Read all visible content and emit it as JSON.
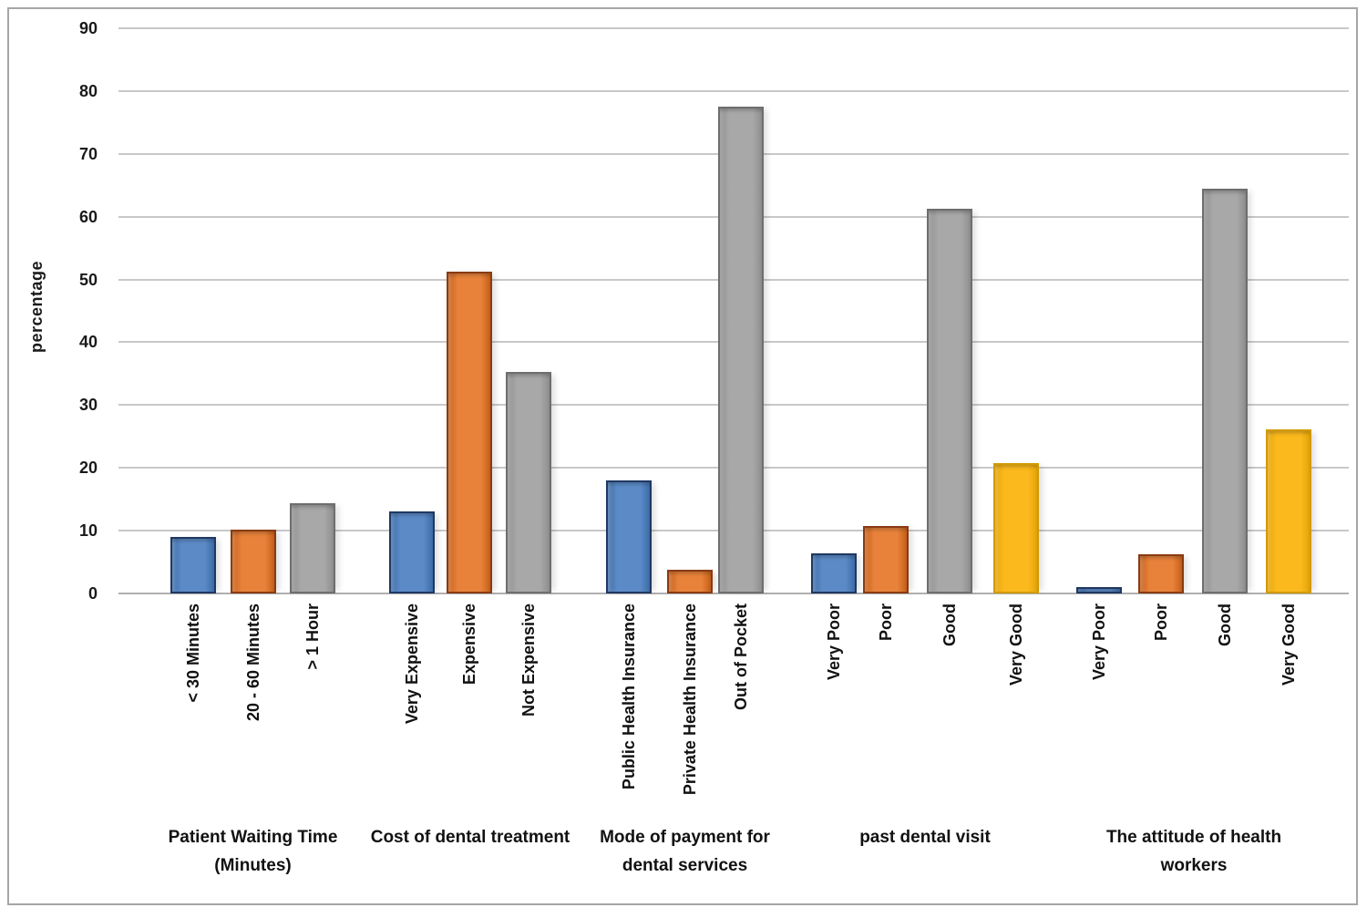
{
  "chart_data": {
    "type": "bar",
    "title": "",
    "xlabel": "",
    "ylabel": "percentage",
    "ylim": [
      0,
      90
    ],
    "yticks": [
      0,
      10,
      20,
      30,
      40,
      50,
      60,
      70,
      80,
      90
    ],
    "grid": true,
    "legend": false,
    "palette": {
      "blue": {
        "fill": "#5b8ac6",
        "border": "#1f3864",
        "shade": "#3d6da8"
      },
      "orange": {
        "fill": "#e8823a",
        "border": "#8a3b12",
        "shade": "#c55f1a"
      },
      "gray": {
        "fill": "#a8a8a8",
        "border": "#6e6e6e",
        "shade": "#8f8f8f"
      },
      "yellow": {
        "fill": "#fbb91d",
        "border": "#d29a00",
        "shade": "#e5a608"
      }
    },
    "groups": [
      {
        "label": "Patient Waiting Time (Minutes)",
        "bars": [
          {
            "category": "< 30 Minutes",
            "value": 9.0,
            "color": "blue"
          },
          {
            "category": "20 - 60 Minutes",
            "value": 10.2,
            "color": "orange"
          },
          {
            "category": "> 1 Hour",
            "value": 14.3,
            "color": "gray"
          }
        ]
      },
      {
        "label": "Cost of dental treatment",
        "bars": [
          {
            "category": "Very Expensive",
            "value": 13.0,
            "color": "blue"
          },
          {
            "category": "Expensive",
            "value": 51.2,
            "color": "orange"
          },
          {
            "category": "Not Expensive",
            "value": 35.3,
            "color": "gray"
          }
        ]
      },
      {
        "label": "Mode of payment for dental services",
        "bars": [
          {
            "category": "Public Health Insurance",
            "value": 18.0,
            "color": "blue"
          },
          {
            "category": "Private Health Insurance",
            "value": 3.8,
            "color": "orange"
          },
          {
            "category": "Out of Pocket",
            "value": 77.5,
            "color": "gray"
          }
        ]
      },
      {
        "label": "past dental visit",
        "bars": [
          {
            "category": "Very Poor",
            "value": 6.4,
            "color": "blue"
          },
          {
            "category": "Poor",
            "value": 10.8,
            "color": "orange"
          },
          {
            "category": "Good",
            "value": 61.3,
            "color": "gray"
          },
          {
            "category": "Very Good",
            "value": 20.7,
            "color": "yellow"
          }
        ]
      },
      {
        "label": "The attitude of health workers",
        "bars": [
          {
            "category": "Very Poor",
            "value": 1.0,
            "color": "blue"
          },
          {
            "category": "Poor",
            "value": 6.3,
            "color": "orange"
          },
          {
            "category": "Good",
            "value": 64.5,
            "color": "gray"
          },
          {
            "category": "Very Good",
            "value": 26.2,
            "color": "yellow"
          }
        ]
      }
    ]
  }
}
